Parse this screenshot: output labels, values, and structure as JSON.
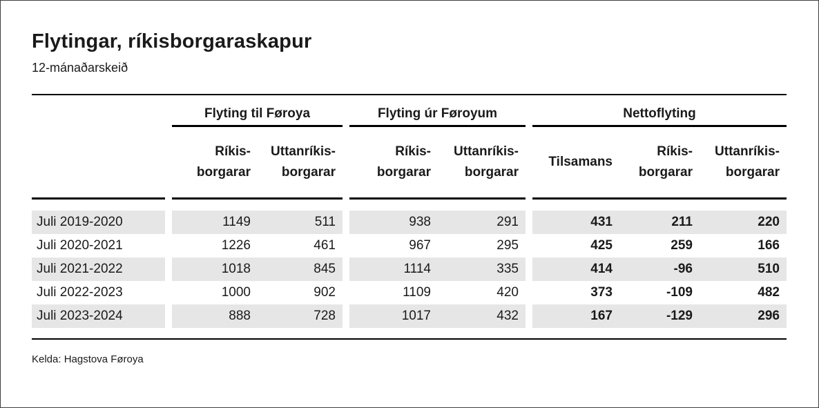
{
  "header": {
    "title": "Flytingar, ríkisborgaraskapur",
    "subtitle": "12-mánaðarskeið"
  },
  "table": {
    "groups": [
      {
        "label": "Flyting til Føroya",
        "columns": [
          {
            "line1": "Ríkis-",
            "line2": "borgarar"
          },
          {
            "line1": "Uttanríkis-",
            "line2": "borgarar"
          }
        ]
      },
      {
        "label": "Flyting úr Føroyum",
        "columns": [
          {
            "line1": "Ríkis-",
            "line2": "borgarar"
          },
          {
            "line1": "Uttanríkis-",
            "line2": "borgarar"
          }
        ]
      },
      {
        "label": "Nettoflyting",
        "columns": [
          {
            "label": "Tilsamans"
          },
          {
            "line1": "Ríkis-",
            "line2": "borgarar"
          },
          {
            "line1": "Uttanríkis-",
            "line2": "borgarar"
          }
        ]
      }
    ],
    "rows": [
      {
        "label": "Juli 2019-2020",
        "values": [
          "1149",
          "511",
          "938",
          "291",
          "431",
          "211",
          "220"
        ]
      },
      {
        "label": "Juli 2020-2021",
        "values": [
          "1226",
          "461",
          "967",
          "295",
          "425",
          "259",
          "166"
        ]
      },
      {
        "label": "Juli 2021-2022",
        "values": [
          "1018",
          "845",
          "1114",
          "335",
          "414",
          "-96",
          "510"
        ]
      },
      {
        "label": "Juli 2022-2023",
        "values": [
          "1000",
          "902",
          "1109",
          "420",
          "373",
          "-109",
          "482"
        ]
      },
      {
        "label": "Juli 2023-2024",
        "values": [
          "888",
          "728",
          "1017",
          "432",
          "167",
          "-129",
          "296"
        ]
      }
    ]
  },
  "footer": {
    "source": "Kelda: Hagstova Føroya"
  },
  "colors": {
    "stripe": "#e6e6e6",
    "rule": "#000000",
    "text": "#1a1a1a"
  },
  "chart_data": {
    "type": "table",
    "title": "Flytingar, ríkisborgaraskapur",
    "subtitle": "12-mánaðarskeið",
    "column_groups": [
      {
        "group": "Flyting til Føroya",
        "columns": [
          "Ríkisborgarar",
          "Uttanríkisborgarar"
        ]
      },
      {
        "group": "Flyting úr Føroyum",
        "columns": [
          "Ríkisborgarar",
          "Uttanríkisborgarar"
        ]
      },
      {
        "group": "Nettoflyting",
        "columns": [
          "Tilsamans",
          "Ríkisborgarar",
          "Uttanríkisborgarar"
        ]
      }
    ],
    "rows": [
      {
        "period": "Juli 2019-2020",
        "til_rikis": 1149,
        "til_uttanrikis": 511,
        "ur_rikis": 938,
        "ur_uttanrikis": 291,
        "netto_tilsamans": 431,
        "netto_rikis": 211,
        "netto_uttanrikis": 220
      },
      {
        "period": "Juli 2020-2021",
        "til_rikis": 1226,
        "til_uttanrikis": 461,
        "ur_rikis": 967,
        "ur_uttanrikis": 295,
        "netto_tilsamans": 425,
        "netto_rikis": 259,
        "netto_uttanrikis": 166
      },
      {
        "period": "Juli 2021-2022",
        "til_rikis": 1018,
        "til_uttanrikis": 845,
        "ur_rikis": 1114,
        "ur_uttanrikis": 335,
        "netto_tilsamans": 414,
        "netto_rikis": -96,
        "netto_uttanrikis": 510
      },
      {
        "period": "Juli 2022-2023",
        "til_rikis": 1000,
        "til_uttanrikis": 902,
        "ur_rikis": 1109,
        "ur_uttanrikis": 420,
        "netto_tilsamans": 373,
        "netto_rikis": -109,
        "netto_uttanrikis": 482
      },
      {
        "period": "Juli 2023-2024",
        "til_rikis": 888,
        "til_uttanrikis": 728,
        "ur_rikis": 1017,
        "ur_uttanrikis": 432,
        "netto_tilsamans": 167,
        "netto_rikis": -129,
        "netto_uttanrikis": 296
      }
    ],
    "source": "Kelda: Hagstova Føroya"
  }
}
